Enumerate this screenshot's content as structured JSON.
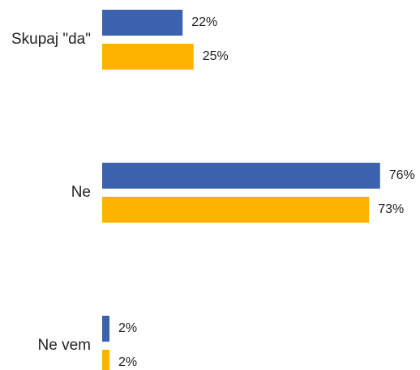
{
  "chart_data": {
    "type": "hbar",
    "categories": [
      "Skupaj \"da\"",
      "Ne",
      "Ne vem"
    ],
    "series": [
      {
        "color": "#3a62ae",
        "values": [
          22,
          76,
          2
        ],
        "value_labels": [
          "22%",
          "76%",
          "2%"
        ]
      },
      {
        "color": "#ffb300",
        "values": [
          25,
          73,
          2
        ],
        "value_labels": [
          "25%",
          "73%",
          "2%"
        ]
      }
    ]
  }
}
